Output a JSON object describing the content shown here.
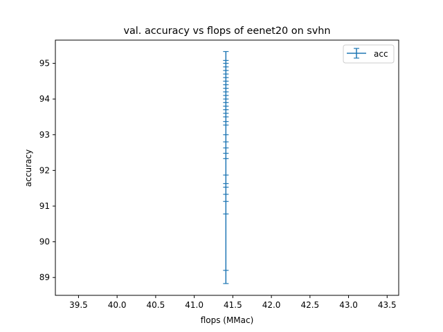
{
  "chart_data": {
    "type": "errorbar",
    "title": "val. accuracy vs flops of eenet20 on svhn",
    "xlabel": "flops (MMac)",
    "ylabel": "accuracy",
    "xlim": [
      39.2,
      43.65
    ],
    "ylim": [
      88.5,
      95.65
    ],
    "xticks": [
      39.5,
      40.0,
      40.5,
      41.0,
      41.5,
      42.0,
      42.5,
      43.0,
      43.5
    ],
    "yticks": [
      89,
      90,
      91,
      92,
      93,
      94,
      95
    ],
    "legend": {
      "position": "top-right",
      "entries": [
        "acc"
      ]
    },
    "grid": false,
    "color": "#1f77b4",
    "series": [
      {
        "name": "acc",
        "x": 41.41,
        "y_values": [
          88.83,
          89.2,
          90.78,
          91.13,
          91.33,
          91.53,
          91.63,
          91.87,
          92.33,
          92.48,
          92.63,
          92.8,
          93.0,
          93.27,
          93.37,
          93.5,
          93.6,
          93.7,
          93.8,
          93.9,
          94.0,
          94.1,
          94.2,
          94.3,
          94.4,
          94.5,
          94.6,
          94.7,
          94.8,
          94.9,
          95.0,
          95.08,
          95.33
        ],
        "y_min": 88.83,
        "y_max": 95.33
      }
    ]
  }
}
